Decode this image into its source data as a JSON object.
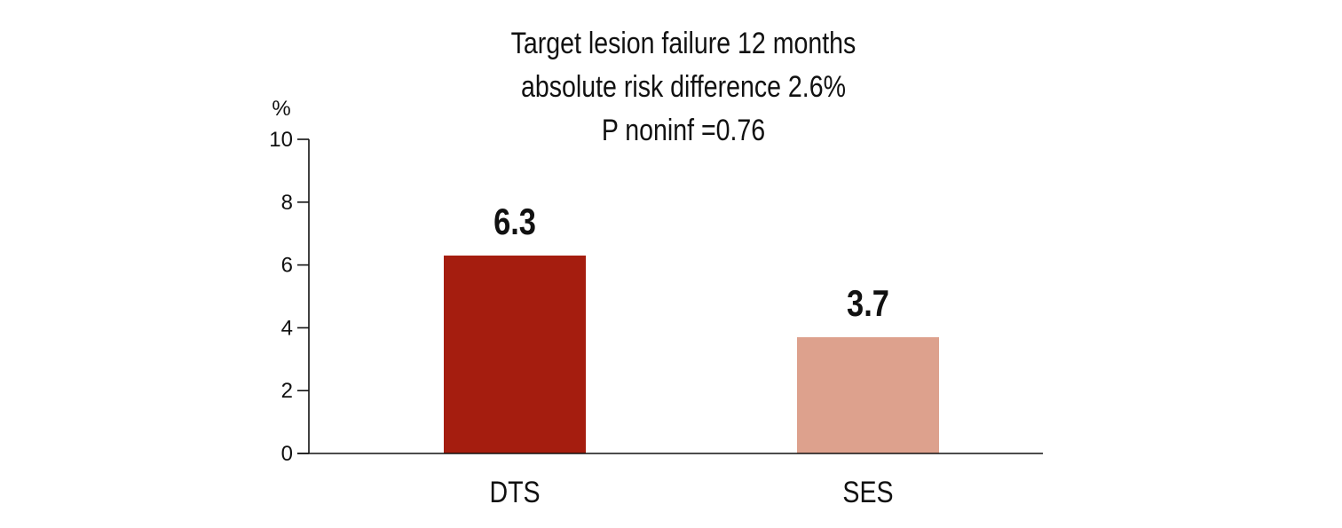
{
  "chart_data": {
    "type": "bar",
    "title_lines": [
      "Target lesion failure 12 months",
      "absolute risk difference 2.6%",
      "P noninf =0.76"
    ],
    "ylabel": "%",
    "xlabel": "",
    "ylim": [
      0,
      10
    ],
    "yticks": [
      0,
      2,
      4,
      6,
      8,
      10
    ],
    "categories": [
      "DTS",
      "SES"
    ],
    "values": [
      6.3,
      3.7
    ],
    "value_labels": [
      "6.3",
      "3.7"
    ],
    "bar_colors": [
      "#A51D0F",
      "#DDA18D"
    ],
    "grid": false,
    "legend": "none"
  }
}
